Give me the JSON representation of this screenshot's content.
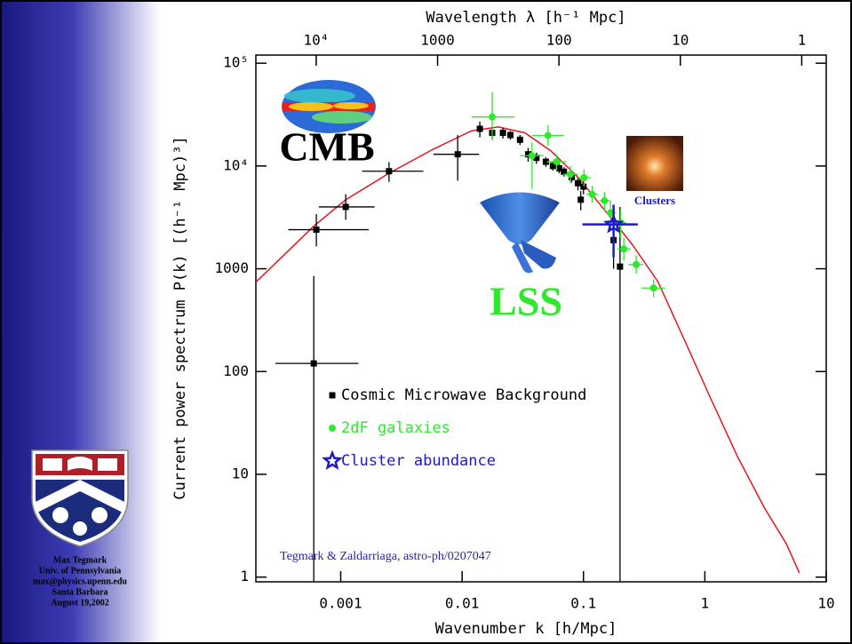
{
  "slide": {
    "author_lines": [
      "Max Tegmark",
      "Univ. of Pennsylvania",
      "max@physics.upenn.edu",
      "Santa Barbara",
      "August 19,2002"
    ]
  },
  "chart_data": {
    "type": "scatter",
    "xlabel": "Wavenumber k [h/Mpc]",
    "x2label": "Wavelength λ [h⁻¹ Mpc]",
    "ylabel": "Current power spectrum P(k) [(h⁻¹ Mpc)³]",
    "log_x": true,
    "log_y": true,
    "xlim": [
      0.0002,
      10
    ],
    "ylim": [
      0.9,
      120000
    ],
    "xticks": [
      0.001,
      0.01,
      0.1,
      1,
      10
    ],
    "x2ticks": [
      {
        "value": 10000,
        "label": "10⁴"
      },
      1000,
      100,
      10,
      1
    ],
    "yticks": [
      1,
      10,
      100,
      1000,
      {
        "value": 10000,
        "label": "10⁴"
      },
      {
        "value": 100000,
        "label": "10⁵"
      }
    ],
    "annotations": [
      "CMB",
      "LSS",
      "Clusters",
      "Tegmark & Zaldarriaga, astro-ph/0207047"
    ],
    "series": [
      {
        "type": "line",
        "color": "#e8141e",
        "x": [
          0.0002,
          0.0006,
          0.0011,
          0.0025,
          0.0058,
          0.012,
          0.0199,
          0.033,
          0.054,
          0.09,
          0.15,
          0.25,
          0.41,
          0.67,
          1.1,
          1.85,
          3.1,
          4.7,
          6.0
        ],
        "values": [
          740,
          2600,
          4700,
          8500,
          14600,
          22000,
          24000,
          21000,
          14000,
          7800,
          3700,
          1750,
          750,
          210,
          57,
          15,
          4.7,
          2.1,
          1.1
        ]
      },
      {
        "name": "Cosmic Microwave Background",
        "type": "errorbar",
        "marker": "square",
        "color": "#000000",
        "x": [
          0.0006,
          0.00063,
          0.0011,
          0.0025,
          0.0092,
          0.014,
          0.0177,
          0.0217,
          0.025,
          0.03,
          0.035,
          0.041,
          0.049,
          0.056,
          0.063,
          0.069,
          0.08,
          0.09,
          0.1,
          0.095,
          0.177,
          0.2
        ],
        "values": [
          120,
          2400,
          4000,
          8900,
          13000,
          23000,
          21000,
          21000,
          20000,
          18000,
          13000,
          12000,
          11000,
          10000,
          9500,
          8800,
          7800,
          6800,
          6300,
          4700,
          1900,
          1050
        ],
        "y_low": [
          0.8,
          1650,
          3000,
          7000,
          7200,
          19000,
          18000,
          18500,
          18000,
          16000,
          11000,
          10500,
          9800,
          9000,
          8500,
          7900,
          6900,
          5800,
          5300,
          3700,
          1000,
          0.8
        ],
        "y_high": [
          850,
          3400,
          5300,
          10900,
          20000,
          27000,
          24000,
          23500,
          22000,
          20000,
          15000,
          13500,
          12200,
          11000,
          10500,
          9700,
          8700,
          7800,
          7300,
          5700,
          2900,
          4000
        ],
        "x_low": [
          0.00029,
          0.00037,
          0.00066,
          0.0015,
          0.0058,
          null,
          null,
          null,
          null,
          null,
          null,
          null,
          null,
          null,
          null,
          null,
          null,
          null,
          null,
          null,
          null,
          null
        ],
        "x_high": [
          0.0014,
          0.0017,
          0.0019,
          0.0048,
          0.0138,
          null,
          null,
          null,
          null,
          null,
          null,
          null,
          null,
          null,
          null,
          null,
          null,
          null,
          null,
          null,
          null,
          null
        ]
      },
      {
        "name": "2dF galaxies",
        "type": "errorbar",
        "marker": "circle",
        "color": "#2ee82e",
        "x": [
          0.0177,
          0.0377,
          0.051,
          0.06,
          0.078,
          0.101,
          0.118,
          0.149,
          0.167,
          0.202,
          0.215,
          0.272,
          0.378
        ],
        "values": [
          30000,
          12600,
          19800,
          11000,
          8300,
          7700,
          5300,
          4600,
          3500,
          2800,
          1560,
          1100,
          650
        ],
        "y_low": [
          18000,
          6000,
          15700,
          9000,
          6800,
          6300,
          4400,
          3700,
          2600,
          2000,
          1200,
          900,
          530
        ],
        "y_high": [
          52000,
          17000,
          25000,
          13000,
          10000,
          9300,
          6400,
          5600,
          4600,
          3700,
          2000,
          1350,
          790
        ],
        "x_low": [
          0.012,
          0.03,
          0.0377,
          0.05,
          0.068,
          0.088,
          0.106,
          0.135,
          0.152,
          0.182,
          0.19,
          0.235,
          0.3
        ],
        "x_high": [
          0.027,
          0.047,
          0.069,
          0.072,
          0.09,
          0.115,
          0.132,
          0.165,
          0.185,
          0.225,
          0.245,
          0.31,
          0.47
        ]
      },
      {
        "name": "Cluster abundance",
        "type": "errorbar",
        "marker": "star",
        "color": "#1a1acc",
        "x": [
          0.177
        ],
        "values": [
          2700
        ],
        "y_low": [
          1300
        ],
        "y_high": [
          4200
        ],
        "x_low": [
          0.098
        ],
        "x_high": [
          0.28
        ]
      }
    ]
  }
}
